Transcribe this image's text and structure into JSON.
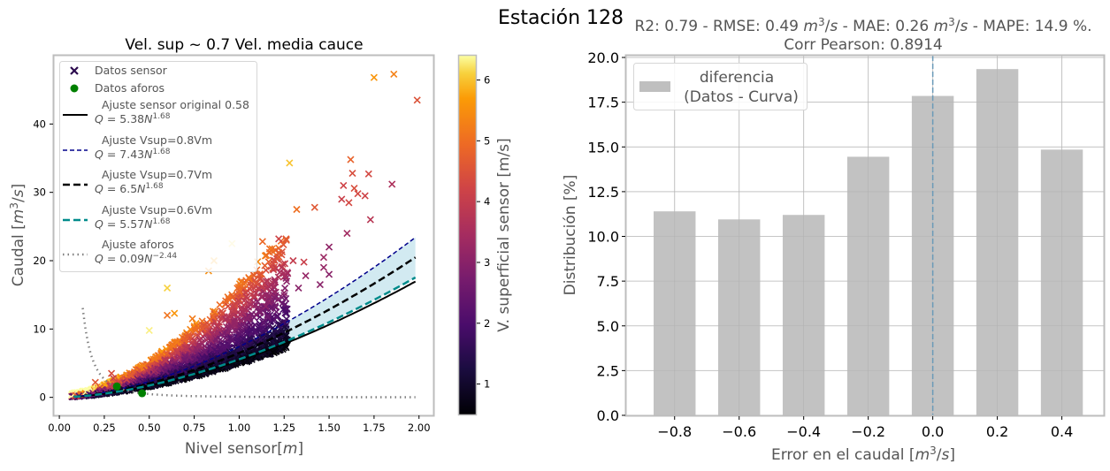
{
  "suptitle": "Estación 128",
  "chart_data": [
    {
      "type": "scatter",
      "title": "Vel. sup ~ 0.7 Vel. media cauce",
      "xlabel": "Nivel sensor[m]",
      "ylabel": "Caudal [m³/s]",
      "xlim": [
        -0.03,
        2.08
      ],
      "ylim": [
        -2.5,
        50
      ],
      "xticks": [
        "0.00",
        "0.25",
        "0.50",
        "0.75",
        "1.00",
        "1.25",
        "1.50",
        "1.75",
        "2.00"
      ],
      "xtick_values": [
        0,
        0.25,
        0.5,
        0.75,
        1.0,
        1.25,
        1.5,
        1.75,
        2.0
      ],
      "yticks": [
        "0",
        "10",
        "20",
        "30",
        "40"
      ],
      "ytick_values": [
        0,
        10,
        20,
        30,
        40
      ],
      "grid": false,
      "legend_position": "top-left",
      "colorbar": {
        "label": "V. superficial sensor [m/s]",
        "range": [
          0.5,
          6.4
        ],
        "ticks": [
          "1",
          "2",
          "3",
          "4",
          "5",
          "6"
        ],
        "tick_values": [
          1,
          2,
          3,
          4,
          5,
          6
        ],
        "colormap": "inferno"
      },
      "legend": [
        {
          "label": "Datos sensor",
          "marker": "x",
          "color": "#2b0a4e"
        },
        {
          "label": "Datos aforos",
          "marker": "o",
          "color": "#008000"
        },
        {
          "label": "Ajuste sensor original 0.58",
          "formula": "Q = 5.38N^1.68",
          "style": "solid",
          "color": "#000000"
        },
        {
          "label": "Ajuste Vsup=0.8Vm",
          "formula": "Q = 7.43N^1.68",
          "style": "dashed",
          "color": "#00008b"
        },
        {
          "label": "Ajuste Vsup=0.7Vm",
          "formula": "Q = 6.5N^1.68",
          "style": "dashed-thick",
          "color": "#000000"
        },
        {
          "label": "Ajuste Vsup=0.6Vm",
          "formula": "Q = 5.57N^1.68",
          "style": "dashed-thick",
          "color": "#008b8b"
        },
        {
          "label": "Ajuste aforos",
          "formula": "Q = 0.09N^-2.44",
          "style": "dotted",
          "color": "#808080"
        }
      ],
      "curves": [
        {
          "name": "Ajuste sensor original 0.58",
          "a": 5.38,
          "b": 1.68
        },
        {
          "name": "Ajuste Vsup=0.8Vm",
          "a": 7.43,
          "b": 1.68
        },
        {
          "name": "Ajuste Vsup=0.7Vm",
          "a": 6.5,
          "b": 1.68
        },
        {
          "name": "Ajuste Vsup=0.6Vm",
          "a": 5.57,
          "b": 1.68
        },
        {
          "name": "Ajuste aforos",
          "a": 0.09,
          "b": -2.44
        }
      ],
      "band_fill_color": "#add8e6",
      "curve_x_range": [
        0.08,
        1.98
      ],
      "aforos_points": [
        [
          0.32,
          1.6
        ],
        [
          0.46,
          0.6
        ]
      ],
      "sensor_outliers": [
        {
          "x": 1.75,
          "y": 46.8,
          "v": 5.6
        },
        {
          "x": 1.86,
          "y": 47.3,
          "v": 5.3
        },
        {
          "x": 1.99,
          "y": 43.5,
          "v": 4.5
        },
        {
          "x": 1.28,
          "y": 34.3,
          "v": 6.0
        },
        {
          "x": 1.62,
          "y": 34.8,
          "v": 4.8
        },
        {
          "x": 1.63,
          "y": 32.8,
          "v": 4.4
        },
        {
          "x": 1.72,
          "y": 32.7,
          "v": 4.3
        },
        {
          "x": 1.85,
          "y": 31.2,
          "v": 3.6
        },
        {
          "x": 1.58,
          "y": 31.0,
          "v": 4.2
        },
        {
          "x": 1.64,
          "y": 30.6,
          "v": 4.4
        },
        {
          "x": 1.66,
          "y": 29.8,
          "v": 4.3
        },
        {
          "x": 1.57,
          "y": 29.0,
          "v": 4.1
        },
        {
          "x": 1.61,
          "y": 28.5,
          "v": 4.3
        },
        {
          "x": 1.7,
          "y": 29.5,
          "v": 4.2
        },
        {
          "x": 1.32,
          "y": 27.5,
          "v": 5.0
        },
        {
          "x": 1.42,
          "y": 27.8,
          "v": 4.6
        },
        {
          "x": 1.73,
          "y": 26.0,
          "v": 3.8
        },
        {
          "x": 1.6,
          "y": 24.0,
          "v": 3.4
        },
        {
          "x": 1.13,
          "y": 22.8,
          "v": 4.9
        },
        {
          "x": 1.22,
          "y": 23.2,
          "v": 4.2
        },
        {
          "x": 1.22,
          "y": 21.2,
          "v": 4.7
        },
        {
          "x": 1.3,
          "y": 20.0,
          "v": 4.0
        },
        {
          "x": 1.36,
          "y": 19.8,
          "v": 4.1
        },
        {
          "x": 1.47,
          "y": 20.5,
          "v": 3.3
        },
        {
          "x": 1.5,
          "y": 22.0,
          "v": 3.1
        },
        {
          "x": 1.47,
          "y": 19.0,
          "v": 3.2
        },
        {
          "x": 1.37,
          "y": 17.8,
          "v": 3.2
        },
        {
          "x": 1.5,
          "y": 18.0,
          "v": 3.0
        },
        {
          "x": 1.45,
          "y": 16.5,
          "v": 3.0
        },
        {
          "x": 1.25,
          "y": 15.3,
          "v": 3.1
        },
        {
          "x": 1.33,
          "y": 16.0,
          "v": 3.0
        },
        {
          "x": 1.15,
          "y": 15.0,
          "v": 3.2
        },
        {
          "x": 1.1,
          "y": 14.0,
          "v": 3.0
        },
        {
          "x": 0.6,
          "y": 12.0,
          "v": 5.1
        },
        {
          "x": 0.64,
          "y": 12.3,
          "v": 5.6
        },
        {
          "x": 0.74,
          "y": 11.5,
          "v": 5.2
        },
        {
          "x": 0.6,
          "y": 16.0,
          "v": 6.1
        },
        {
          "x": 0.86,
          "y": 20.0,
          "v": 5.8
        },
        {
          "x": 0.83,
          "y": 18.5,
          "v": 5.5
        },
        {
          "x": 0.96,
          "y": 22.5,
          "v": 6.2
        },
        {
          "x": 0.5,
          "y": 9.8,
          "v": 6.3
        },
        {
          "x": 0.2,
          "y": 2.2,
          "v": 4.6
        },
        {
          "x": 0.29,
          "y": 3.5,
          "v": 4.4
        },
        {
          "x": 0.3,
          "y": 2.8,
          "v": 4.1
        }
      ]
    },
    {
      "type": "bar",
      "title": "R2: 0.79 - RMSE: 0.49 m³/s - MAE: 0.26 m³/s - MAPE: 14.9 %.",
      "subtitle": "Corr Pearson: 0.8914",
      "xlabel": "Error en el caudal  [m³/s]",
      "ylabel": "Distribución [%]",
      "categories": [
        -0.8,
        -0.6,
        -0.4,
        -0.2,
        0.0,
        0.2,
        0.4
      ],
      "category_labels": [
        "−0.8",
        "−0.6",
        "−0.4",
        "−0.2",
        "0.0",
        "0.2",
        "0.4"
      ],
      "series": [
        {
          "name": "diferencia\n(Datos - Curva)",
          "values": [
            11.4,
            10.95,
            11.2,
            14.45,
            17.85,
            19.35,
            14.85
          ],
          "color": "#bfbfbf"
        }
      ],
      "bar_width": 0.13,
      "xlim": [
        -0.95,
        0.53
      ],
      "ylim": [
        0,
        20.1
      ],
      "yticks": [
        "0.0",
        "2.5",
        "5.0",
        "7.5",
        "10.0",
        "12.5",
        "15.0",
        "17.5",
        "20.0"
      ],
      "ytick_values": [
        0,
        2.5,
        5,
        7.5,
        10,
        12.5,
        15,
        17.5,
        20
      ],
      "vline": {
        "x": 0.0,
        "style": "dashed",
        "color": "#6a9ab8"
      },
      "grid": true,
      "legend_position": "top-left",
      "legend": [
        {
          "line1": "diferencia",
          "line2": "(Datos - Curva)"
        }
      ]
    }
  ]
}
